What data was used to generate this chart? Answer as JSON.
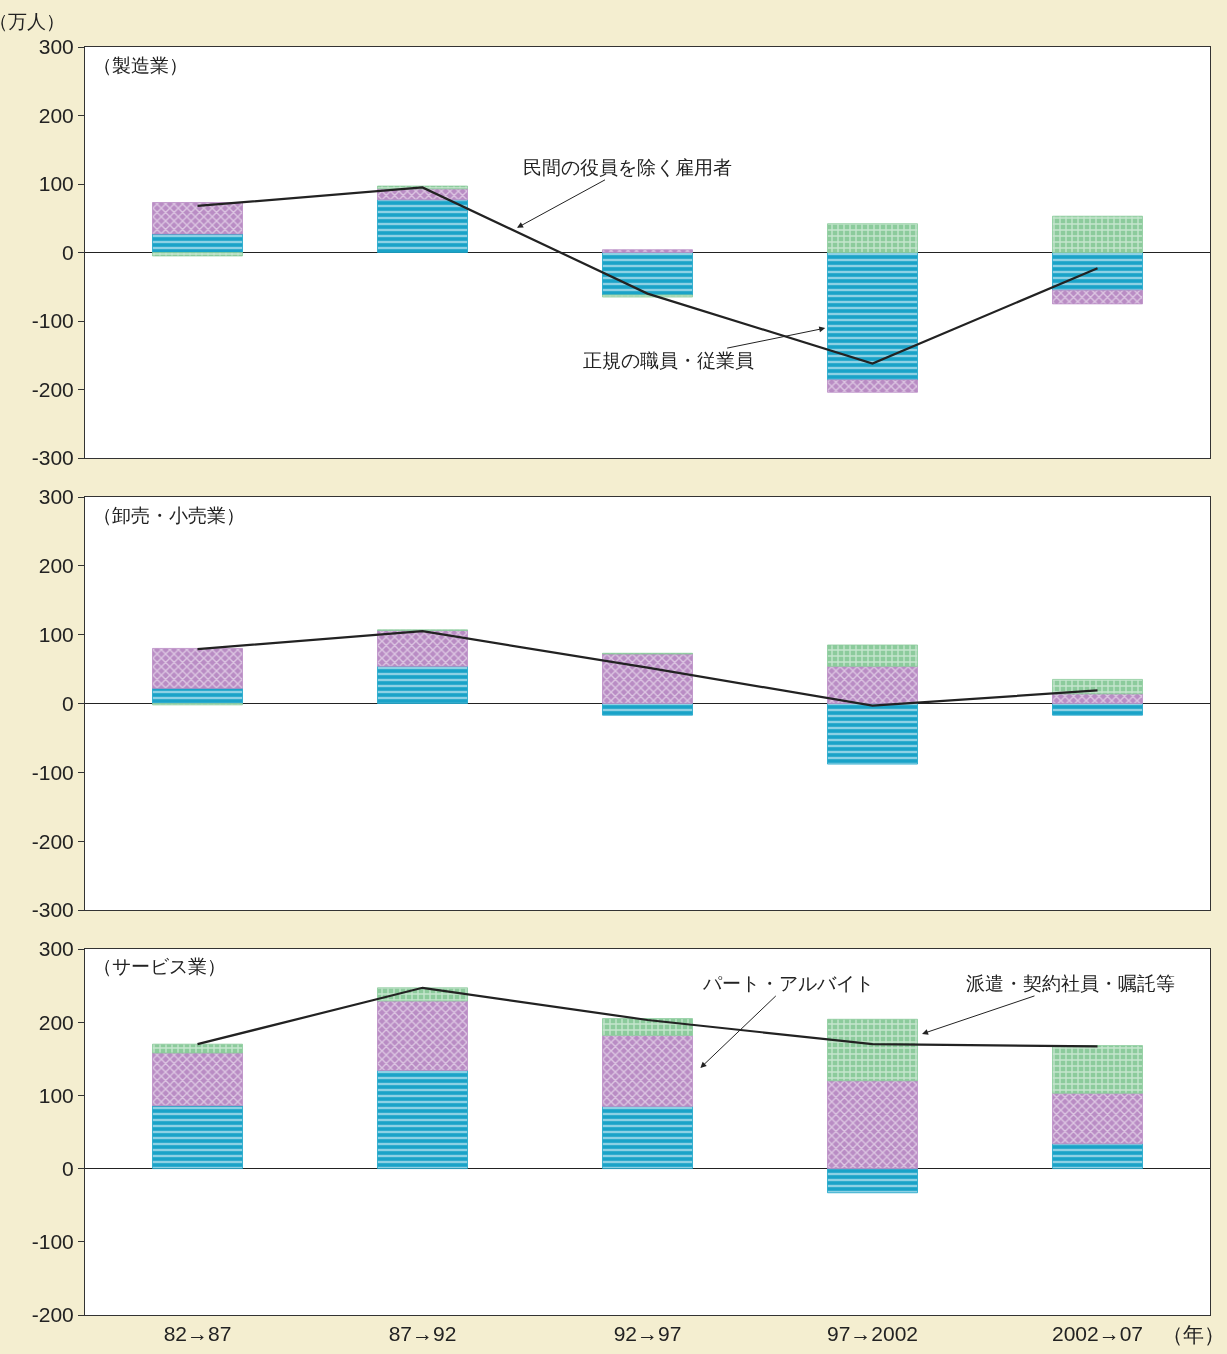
{
  "chart_data": [
    {
      "type": "bar",
      "stacked": true,
      "title": "（製造業）",
      "ylabel": "（万人）",
      "tick_labels": "y",
      "categories": [
        null,
        null,
        null,
        null,
        null
      ],
      "ylim": [
        -300,
        300
      ],
      "yticks": [
        -300,
        -200,
        -100,
        0,
        100,
        200,
        300
      ],
      "series": [
        {
          "color": "#1aa3c8",
          "values": [
            27,
            77,
            -62,
            -186,
            -55
          ]
        },
        {
          "color": "#b98cc4",
          "values": [
            46,
            16,
            4,
            -18,
            -20
          ]
        },
        {
          "color": "#8ccb9c",
          "values": [
            -5,
            4,
            -3,
            42,
            53
          ]
        },
        {
          "type": "line",
          "color": "#222222",
          "values": [
            68,
            95,
            -60,
            -162,
            -23
          ]
        }
      ],
      "annotations": [
        "民間の役員を除く雇用者",
        "正規の職員・従業員"
      ]
    },
    {
      "type": "bar",
      "stacked": true,
      "title": "（卸売・小売業）",
      "tick_labels": "y",
      "categories": [
        null,
        null,
        null,
        null,
        null
      ],
      "ylim": [
        -300,
        300
      ],
      "yticks": [
        -300,
        -200,
        -100,
        0,
        100,
        200,
        300
      ],
      "series": [
        {
          "color": "#1aa3c8",
          "values": [
            22,
            54,
            -17,
            -88,
            -17
          ]
        },
        {
          "color": "#b98cc4",
          "values": [
            58,
            52,
            72,
            54,
            14
          ]
        },
        {
          "color": "#8ccb9c",
          "values": [
            -2,
            1,
            1,
            31,
            21
          ]
        },
        {
          "type": "line",
          "color": "#222222",
          "values": [
            79,
            105,
            52,
            -3,
            19
          ]
        }
      ]
    },
    {
      "type": "bar",
      "stacked": true,
      "title": "（サービス業）",
      "xlabel": "（年）",
      "categories": [
        "82→87",
        "87→92",
        "92→97",
        "97→2002",
        "2002→07"
      ],
      "ylim": [
        -200,
        300
      ],
      "yticks": [
        -200,
        -100,
        0,
        100,
        200,
        300
      ],
      "series": [
        {
          "color": "#1aa3c8",
          "values": [
            86,
            134,
            85,
            -33,
            34
          ]
        },
        {
          "color": "#b98cc4",
          "values": [
            72,
            95,
            97,
            120,
            69
          ]
        },
        {
          "color": "#8ccb9c",
          "values": [
            12,
            18,
            23,
            84,
            65
          ]
        },
        {
          "type": "line",
          "color": "#222222",
          "values": [
            170,
            247,
            203,
            170,
            167
          ]
        }
      ],
      "annotations": [
        "パート・アルバイト",
        "派遣・契約社員・嘱託等"
      ]
    }
  ]
}
